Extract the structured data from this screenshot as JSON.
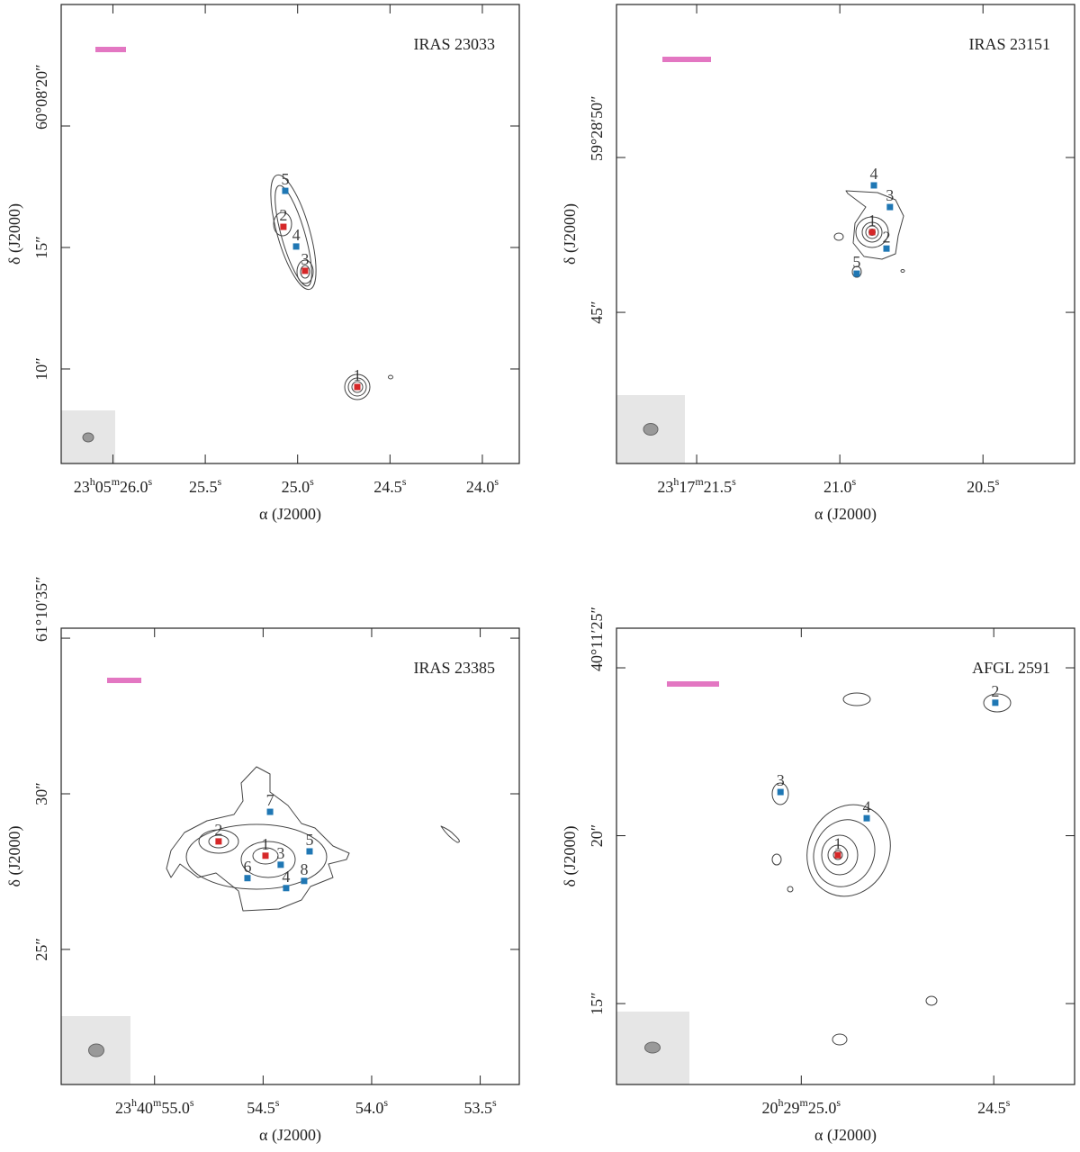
{
  "chart_data": [
    {
      "type": "scatter",
      "title": "IRAS 23033",
      "xlabel": "α (J2000)",
      "ylabel": "δ (J2000)",
      "xlim": [
        26.28,
        23.8
      ],
      "ylim": [
        6.11,
        25.0
      ],
      "xticks": [
        {
          "value": 26.0,
          "label": "23h05m26.0s"
        },
        {
          "value": 25.5,
          "label": "25.5s"
        },
        {
          "value": 25.0,
          "label": "25.0s"
        },
        {
          "value": 24.5,
          "label": "24.5s"
        },
        {
          "value": 24.0,
          "label": "24.0s"
        }
      ],
      "yticks": [
        {
          "value": 20,
          "label": "60°08′20″"
        },
        {
          "value": 15,
          "label": "15″"
        },
        {
          "value": 10,
          "label": "10″"
        }
      ],
      "points": [
        {
          "label": "5",
          "x": 25.067,
          "y": 17.33,
          "color": "#1f77b4"
        },
        {
          "label": "2",
          "x": 25.077,
          "y": 15.85,
          "color": "#d62728"
        },
        {
          "label": "4",
          "x": 25.008,
          "y": 15.04,
          "color": "#1f77b4"
        },
        {
          "label": "3",
          "x": 24.96,
          "y": 14.04,
          "color": "#d62728"
        },
        {
          "label": "1",
          "x": 24.677,
          "y": 9.26,
          "color": "#d62728"
        }
      ]
    },
    {
      "type": "scatter",
      "title": "IRAS 23151",
      "xlabel": "α (J2000)",
      "ylabel": "δ (J2000)",
      "xlim": [
        21.78,
        20.18
      ],
      "ylim": [
        40.12,
        54.94
      ],
      "xticks": [
        {
          "value": 21.5,
          "label": "23h17m21.5s"
        },
        {
          "value": 21.0,
          "label": "21.0s"
        },
        {
          "value": 20.5,
          "label": "20.5s"
        }
      ],
      "yticks": [
        {
          "value": 50,
          "label": "59°28′50″"
        },
        {
          "value": 45,
          "label": "45″"
        }
      ],
      "points": [
        {
          "label": "4",
          "x": 20.881,
          "y": 49.1,
          "color": "#1f77b4"
        },
        {
          "label": "3",
          "x": 20.825,
          "y": 48.4,
          "color": "#1f77b4"
        },
        {
          "label": "1",
          "x": 20.887,
          "y": 47.59,
          "color": "#d62728"
        },
        {
          "label": "2",
          "x": 20.837,
          "y": 47.06,
          "color": "#1f77b4"
        },
        {
          "label": "5",
          "x": 20.941,
          "y": 46.25,
          "color": "#1f77b4"
        }
      ]
    },
    {
      "type": "scatter",
      "title": "IRAS 23385",
      "xlabel": "α (J2000)",
      "ylabel": "δ (J2000)",
      "xlim": [
        55.43,
        53.32
      ],
      "ylim": [
        20.66,
        35.32
      ],
      "xticks": [
        {
          "value": 55.0,
          "label": "23h40m55.0s"
        },
        {
          "value": 54.5,
          "label": "54.5s"
        },
        {
          "value": 54.0,
          "label": "54.0s"
        },
        {
          "value": 53.5,
          "label": "53.5s"
        }
      ],
      "yticks": [
        {
          "value": 35,
          "label": "61°10′35″"
        },
        {
          "value": 30,
          "label": "30″"
        },
        {
          "value": 25,
          "label": "25″"
        }
      ],
      "points": [
        {
          "label": "2",
          "x": 54.705,
          "y": 28.47,
          "color": "#d62728"
        },
        {
          "label": "1",
          "x": 54.489,
          "y": 28.01,
          "color": "#d62728"
        },
        {
          "label": "7",
          "x": 54.468,
          "y": 29.42,
          "color": "#1f77b4"
        },
        {
          "label": "3",
          "x": 54.419,
          "y": 27.72,
          "color": "#1f77b4"
        },
        {
          "label": "5",
          "x": 54.286,
          "y": 28.15,
          "color": "#1f77b4"
        },
        {
          "label": "6",
          "x": 54.572,
          "y": 27.29,
          "color": "#1f77b4"
        },
        {
          "label": "4",
          "x": 54.394,
          "y": 26.97,
          "color": "#1f77b4"
        },
        {
          "label": "8",
          "x": 54.311,
          "y": 27.2,
          "color": "#1f77b4"
        }
      ]
    },
    {
      "type": "scatter",
      "title": "AFGL 2591",
      "xlabel": "α (J2000)",
      "ylabel": "δ (J2000)",
      "xlim": [
        25.48,
        24.29
      ],
      "ylim": [
        12.59,
        26.18
      ],
      "xticks": [
        {
          "value": 25.0,
          "label": "20h29m25.0s"
        },
        {
          "value": 24.5,
          "label": "24.5s"
        }
      ],
      "yticks": [
        {
          "value": 25,
          "label": "40°11′25″"
        },
        {
          "value": 20,
          "label": "20″"
        },
        {
          "value": 15,
          "label": "15″"
        }
      ],
      "points": [
        {
          "label": "2",
          "x": 24.496,
          "y": 23.96,
          "color": "#1f77b4"
        },
        {
          "label": "3",
          "x": 25.054,
          "y": 21.3,
          "color": "#1f77b4"
        },
        {
          "label": "4",
          "x": 24.83,
          "y": 20.52,
          "color": "#1f77b4"
        },
        {
          "label": "1",
          "x": 24.905,
          "y": 19.42,
          "color": "#d62728"
        }
      ]
    }
  ]
}
